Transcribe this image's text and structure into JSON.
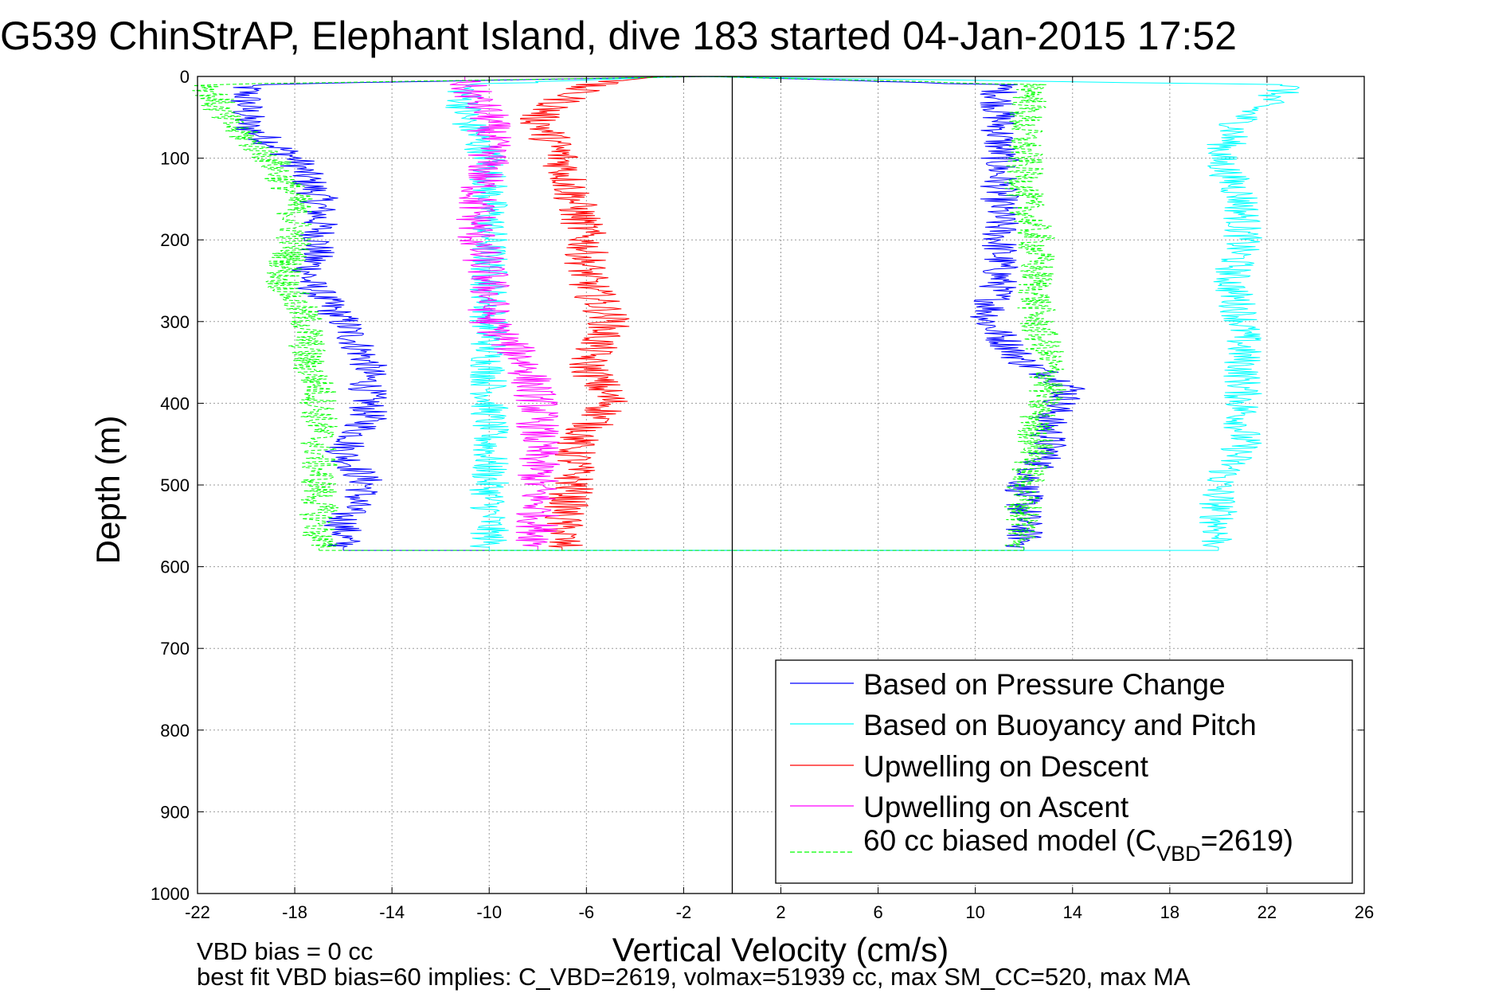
{
  "chart_data": {
    "type": "line",
    "title": "G539 ChinStrAP, Elephant Island, dive 183 started 04-Jan-2015 17:52",
    "xlabel": "Vertical Velocity (cm/s)",
    "ylabel": "Depth (m)",
    "xlim": [
      -22,
      26
    ],
    "ylim": [
      0,
      1000
    ],
    "y_reversed": true,
    "grid": true,
    "xticks": [
      -22,
      -18,
      -14,
      -10,
      -6,
      -2,
      2,
      6,
      10,
      14,
      18,
      22,
      26
    ],
    "xtick_labels": [
      "-22",
      "-18",
      "-14",
      "-10",
      "-6",
      "-2",
      "2",
      "6",
      "10",
      "14",
      "18",
      "22",
      "26"
    ],
    "yticks": [
      0,
      100,
      200,
      300,
      400,
      500,
      600,
      700,
      800,
      900,
      1000
    ],
    "ytick_labels": [
      "0",
      "100",
      "200",
      "300",
      "400",
      "500",
      "600",
      "700",
      "800",
      "900",
      "1000"
    ],
    "zero_line_x": 0,
    "legend_position": "bottom-right",
    "legend": [
      {
        "label": "Based on Pressure Change",
        "color": "#0000ff",
        "dash": false
      },
      {
        "label": "Based on Buoyancy and Pitch",
        "color": "#00ffff",
        "dash": false
      },
      {
        "label": "Upwelling on Descent",
        "color": "#ff0000",
        "dash": false
      },
      {
        "label": "Upwelling on Ascent",
        "color": "#ff00ff",
        "dash": false
      },
      {
        "label_main": "60 cc biased model (C",
        "label_sub": "VBD",
        "label_tail": "=2619)",
        "color": "#00ff00",
        "dash": true
      }
    ],
    "series": [
      {
        "name": "Based on Pressure Change",
        "color": "#0000ff",
        "dash": false,
        "depth": [
          0,
          10,
          30,
          60,
          100,
          150,
          200,
          250,
          300,
          350,
          380,
          420,
          460,
          500,
          540,
          570,
          580
        ],
        "descent": [
          -1,
          -20,
          -20,
          -20,
          -18,
          -17,
          -17,
          -17.5,
          -16,
          -15,
          -15,
          -15,
          -16,
          -15,
          -16,
          -16,
          -16
        ],
        "ascent": [
          -1,
          11,
          11,
          11,
          11,
          11,
          11,
          11,
          10.5,
          12,
          14,
          13,
          13,
          12,
          12,
          12,
          12
        ]
      },
      {
        "name": "Based on Buoyancy and Pitch",
        "color": "#00ffff",
        "dash": false,
        "depth": [
          0,
          10,
          50,
          100,
          150,
          200,
          250,
          300,
          350,
          400,
          450,
          500,
          540,
          570,
          580
        ],
        "descent": [
          -2,
          -11,
          -11,
          -10,
          -10,
          -10,
          -10,
          -10,
          -10,
          -10,
          -10,
          -10,
          -10,
          -10,
          -10
        ],
        "ascent": [
          -2,
          23,
          21,
          20,
          21,
          21,
          20.5,
          21,
          21,
          21,
          21,
          20,
          20,
          20,
          20
        ]
      },
      {
        "name": "Upwelling on Descent",
        "color": "#ff0000",
        "dash": false,
        "depth": [
          0,
          10,
          50,
          100,
          150,
          200,
          250,
          300,
          350,
          400,
          450,
          500,
          540,
          570,
          580
        ],
        "values": [
          -3,
          -6,
          -8,
          -7,
          -6.5,
          -6,
          -6,
          -5,
          -6,
          -5,
          -6.5,
          -6.5,
          -7,
          -7,
          -7
        ]
      },
      {
        "name": "Upwelling on Ascent",
        "color": "#ff00ff",
        "dash": false,
        "depth": [
          0,
          10,
          50,
          100,
          150,
          200,
          250,
          300,
          350,
          400,
          450,
          500,
          540,
          570,
          580
        ],
        "values": [
          -11,
          -11,
          -10,
          -10,
          -10.5,
          -10.5,
          -10,
          -10,
          -8.5,
          -8,
          -8,
          -8,
          -8,
          -8,
          -8
        ]
      },
      {
        "name": "60 cc biased model (CVBD=2619)",
        "color": "#00ff00",
        "dash": true,
        "depth": [
          0,
          10,
          50,
          100,
          150,
          200,
          250,
          300,
          350,
          380,
          420,
          460,
          500,
          540,
          570,
          580
        ],
        "descent": [
          -1,
          -21.5,
          -21,
          -19,
          -18,
          -18,
          -18.5,
          -17.5,
          -17.5,
          -17,
          -17,
          -17,
          -17,
          -17,
          -17,
          -17
        ],
        "ascent": [
          -1,
          12.5,
          12,
          12,
          12,
          12.5,
          12.5,
          12.5,
          13,
          13,
          12.5,
          12.5,
          12,
          12,
          12,
          12
        ]
      }
    ]
  },
  "footer": {
    "line1": "VBD bias = 0 cc",
    "line2": "best fit VBD bias=60 implies: C_VBD=2619, volmax=51939 cc, max SM_CC=520, max MA"
  }
}
